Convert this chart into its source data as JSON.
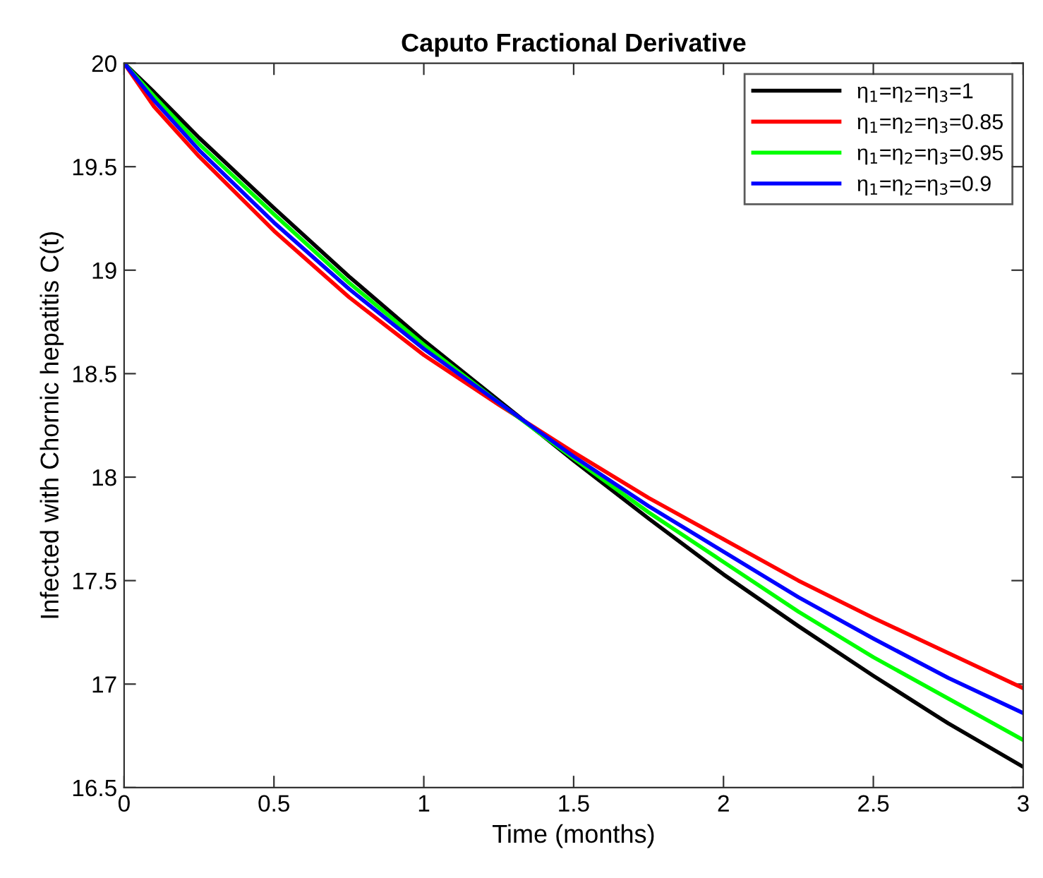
{
  "chart_data": {
    "type": "line",
    "title": "Caputo Fractional Derivative",
    "xlabel": "Time (months)",
    "ylabel": "Infected with Chornic hepatitis C(t)",
    "x": [
      0,
      0.1,
      0.25,
      0.5,
      0.75,
      1,
      1.25,
      1.5,
      1.75,
      2,
      2.25,
      2.5,
      2.75,
      3
    ],
    "series": [
      {
        "name": "η$_{1}$=η$_{2}$=η$_{3}$=1",
        "color": "#000000",
        "values": [
          20,
          19.86,
          19.64,
          19.3,
          18.97,
          18.66,
          18.37,
          18.08,
          17.8,
          17.53,
          17.28,
          17.04,
          16.81,
          16.6
        ]
      },
      {
        "name": "η$_{1}$=η$_{2}$=η$_{3}$=0.85",
        "color": "#ff0000",
        "values": [
          20,
          19.79,
          19.55,
          19.19,
          18.87,
          18.59,
          18.35,
          18.12,
          17.9,
          17.7,
          17.5,
          17.32,
          17.15,
          16.98
        ]
      },
      {
        "name": "η$_{1}$=η$_{2}$=η$_{3}$=0.95",
        "color": "#00ff00",
        "values": [
          20,
          19.84,
          19.61,
          19.27,
          18.94,
          18.64,
          18.36,
          18.09,
          17.83,
          17.59,
          17.35,
          17.13,
          16.93,
          16.73
        ]
      },
      {
        "name": "η$_{1}$=η$_{2}$=η$_{3}$=0.9",
        "color": "#0000ff",
        "values": [
          20,
          19.82,
          19.58,
          19.23,
          18.91,
          18.62,
          18.36,
          18.1,
          17.86,
          17.64,
          17.42,
          17.22,
          17.03,
          16.86
        ]
      }
    ],
    "xlim": [
      0,
      3
    ],
    "xticks": [
      0,
      0.5,
      1,
      1.5,
      2,
      2.5,
      3
    ],
    "ylim": [
      16.5,
      20
    ],
    "yticks": [
      16.5,
      17,
      17.5,
      18,
      18.5,
      19,
      19.5,
      20
    ],
    "grid": false,
    "legend": "top right",
    "line_style": "solid",
    "marker": "none"
  }
}
